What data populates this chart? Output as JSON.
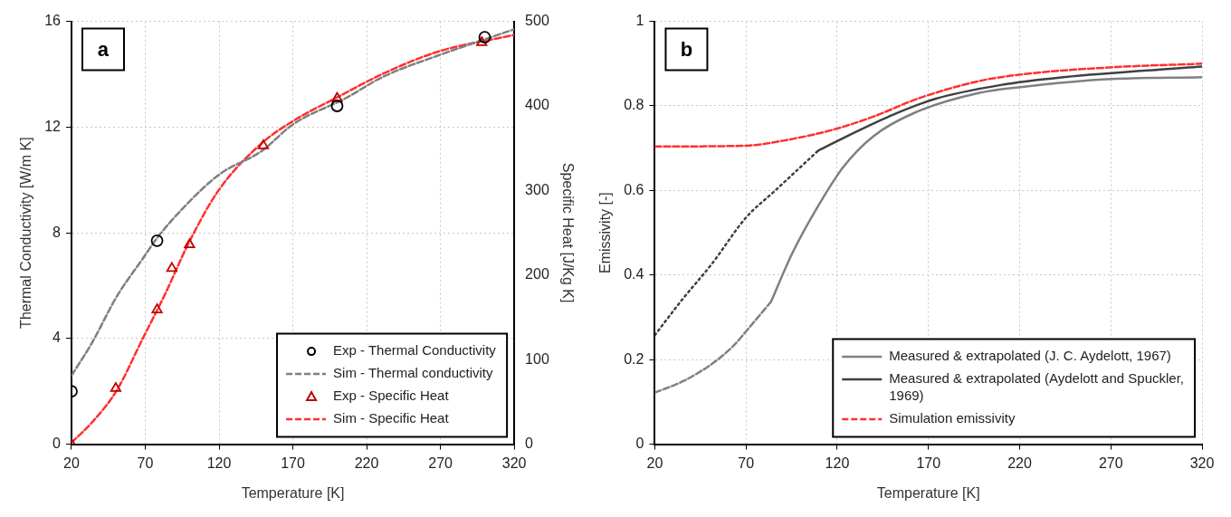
{
  "chart_data": [
    {
      "type": "line",
      "annotations": [
        "a"
      ],
      "xlabel": "Temperature [K]",
      "ylabel": "Thermal Conductivity [W/m K]",
      "y2label": "Specific Heat [J/Kg K]",
      "xlim": [
        20,
        320
      ],
      "xticks": [
        20,
        70,
        120,
        170,
        220,
        270,
        320
      ],
      "ylim": [
        0,
        16
      ],
      "yticks": [
        0,
        4,
        8,
        12,
        16
      ],
      "y2lim": [
        0,
        500
      ],
      "y2ticks": [
        0,
        100,
        200,
        300,
        400,
        500
      ],
      "grid": true,
      "legend": "bottom right",
      "series": [
        {
          "name": "Exp - Thermal Conductivity",
          "type": "scatter",
          "marker": "circle",
          "color": "#000000",
          "x": [
            20,
            78,
            200,
            300
          ],
          "values": [
            2.0,
            7.7,
            12.8,
            15.4
          ]
        },
        {
          "name": "Sim - Thermal conductivity",
          "line_style": "dashed",
          "color": "#7f7f7f",
          "x": [
            20,
            33.5,
            50.8,
            68,
            78,
            95,
            120,
            149,
            170,
            206,
            231,
            268,
            320
          ],
          "values": [
            2.6,
            3.8,
            5.6,
            7.0,
            7.8,
            8.9,
            10.2,
            11.1,
            12.1,
            13.1,
            13.9,
            14.7,
            15.7
          ]
        },
        {
          "name": "Exp - Specific Heat",
          "type": "scatter",
          "marker": "triangle",
          "axis": "y2",
          "color": "#c00000",
          "x": [
            20,
            50,
            78,
            88,
            100,
            150,
            200,
            298
          ],
          "values": [
            0,
            66,
            159,
            208,
            236,
            353,
            409,
            475
          ]
        },
        {
          "name": "Sim - Specific Heat",
          "line_style": "dashed",
          "axis": "y2",
          "color": "#ff3030",
          "x": [
            20,
            33.5,
            50.8,
            68,
            83,
            100,
            120,
            149,
            170,
            202,
            231,
            268,
            320
          ],
          "values": [
            2,
            25,
            64,
            124,
            176,
            240,
            301,
            356,
            382,
            412,
            438,
            464,
            484
          ]
        }
      ]
    },
    {
      "type": "line",
      "annotations": [
        "b"
      ],
      "xlabel": "Temperature [K]",
      "ylabel": "Emissivity [-]",
      "xlim": [
        20,
        320
      ],
      "xticks": [
        20,
        70,
        120,
        170,
        220,
        270,
        320
      ],
      "ylim": [
        0,
        1
      ],
      "yticks": [
        0,
        0.2,
        0.4,
        0.6,
        0.8,
        1
      ],
      "grid": true,
      "legend": "bottom right",
      "series": [
        {
          "name": "Measured & extrapolated (J. C. Aydelott, 1967)",
          "line_style": "solid",
          "color": "#808080",
          "x": [
            83.7,
            95.4,
            109.5,
            123.4,
            140,
            163,
            198,
            221.5,
            268,
            320
          ],
          "values": [
            0.337,
            0.452,
            0.563,
            0.656,
            0.729,
            0.785,
            0.831,
            0.845,
            0.863,
            0.868
          ]
        },
        {
          "line_style": "dashed",
          "color": "#808080",
          "x": [
            20,
            35,
            51,
            62.7,
            72,
            83.7
          ],
          "values": [
            0.122,
            0.148,
            0.189,
            0.231,
            0.277,
            0.337
          ]
        },
        {
          "name": "Measured & extrapolated (Aydelott and Spuckler, 1969)",
          "line_style": "solid",
          "color": "#404040",
          "x": [
            109.5,
            128,
            151,
            174,
            209,
            244,
            320
          ],
          "values": [
            0.694,
            0.734,
            0.78,
            0.817,
            0.849,
            0.868,
            0.893
          ]
        },
        {
          "line_style": "dotted",
          "color": "#404040",
          "x": [
            20,
            35,
            51,
            70,
            86,
            109.5
          ],
          "values": [
            0.258,
            0.342,
            0.425,
            0.536,
            0.6,
            0.694
          ]
        },
        {
          "name": "Simulation emissivity",
          "line_style": "dashed",
          "color": "#ff3030",
          "x": [
            20,
            70,
            93,
            117,
            140,
            164,
            198,
            222,
            269,
            320
          ],
          "values": [
            0.704,
            0.706,
            0.72,
            0.743,
            0.775,
            0.817,
            0.859,
            0.875,
            0.891,
            0.9
          ]
        }
      ]
    }
  ]
}
